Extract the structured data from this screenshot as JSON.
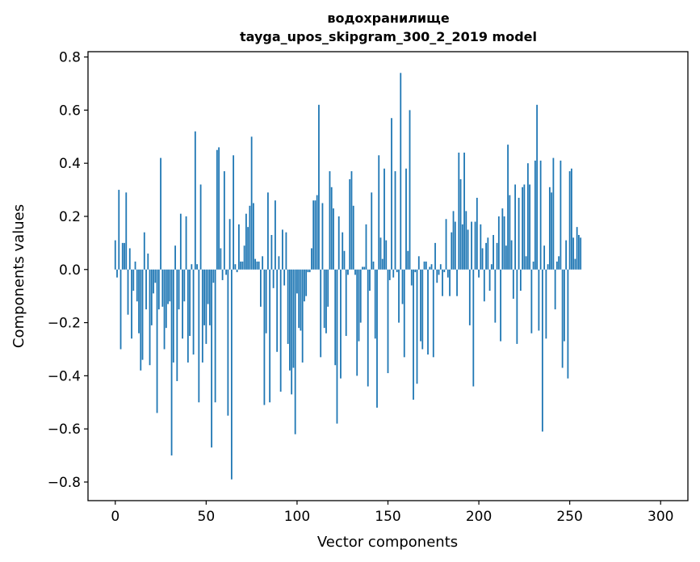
{
  "chart_data": {
    "type": "bar",
    "title": [
      "водохранилище",
      "tayga_upos_skipgram_300_2_2019 model"
    ],
    "xlabel": "Vector components",
    "ylabel": "Components values",
    "xlim": [
      -15,
      315
    ],
    "ylim": [
      -0.87,
      0.82
    ],
    "xticks": [
      0,
      50,
      100,
      150,
      200,
      250,
      300
    ],
    "xtick_labels": [
      "0",
      "50",
      "100",
      "150",
      "200",
      "250",
      "300"
    ],
    "yticks": [
      -0.8,
      -0.6,
      -0.4,
      -0.2,
      0.0,
      0.2,
      0.4,
      0.6,
      0.8
    ],
    "ytick_labels": [
      "−0.8",
      "−0.6",
      "−0.4",
      "−0.2",
      "0.0",
      "0.2",
      "0.4",
      "0.6",
      "0.8"
    ],
    "grid": false,
    "bar_color": "#1f77b4",
    "series": [
      {
        "name": "components",
        "values": [
          0.11,
          -0.03,
          0.3,
          -0.3,
          0.1,
          0.1,
          0.29,
          -0.17,
          0.08,
          -0.26,
          -0.08,
          0.03,
          -0.12,
          -0.24,
          -0.38,
          -0.34,
          0.14,
          -0.15,
          0.06,
          -0.36,
          -0.21,
          -0.09,
          -0.05,
          -0.54,
          -0.15,
          0.42,
          -0.14,
          -0.3,
          -0.22,
          -0.13,
          -0.12,
          -0.7,
          -0.35,
          0.09,
          -0.42,
          -0.15,
          0.21,
          -0.26,
          -0.12,
          0.2,
          -0.35,
          -0.25,
          0.02,
          -0.32,
          0.52,
          0.02,
          -0.5,
          0.32,
          -0.35,
          -0.21,
          -0.28,
          -0.13,
          -0.21,
          -0.67,
          -0.05,
          -0.5,
          0.45,
          0.46,
          0.08,
          -0.04,
          0.37,
          -0.02,
          -0.55,
          0.19,
          -0.79,
          0.43,
          0.02,
          -0.01,
          0.17,
          0.03,
          0.03,
          0.09,
          0.21,
          0.16,
          0.24,
          0.5,
          0.25,
          0.04,
          0.03,
          0.03,
          -0.14,
          0.05,
          -0.51,
          -0.24,
          0.29,
          -0.5,
          0.13,
          -0.07,
          0.26,
          -0.31,
          0.05,
          -0.46,
          0.15,
          -0.06,
          0.14,
          -0.28,
          -0.38,
          -0.47,
          -0.37,
          -0.62,
          -0.09,
          -0.22,
          -0.23,
          -0.35,
          -0.12,
          -0.1,
          -0.01,
          -0.01,
          0.08,
          0.26,
          0.26,
          0.28,
          0.62,
          -0.33,
          0.25,
          -0.22,
          -0.24,
          -0.14,
          0.37,
          0.31,
          0.23,
          -0.36,
          -0.58,
          0.2,
          -0.41,
          0.14,
          0.07,
          -0.25,
          -0.02,
          0.34,
          0.37,
          0.24,
          -0.02,
          -0.4,
          -0.27,
          -0.2,
          0.01,
          0.01,
          0.17,
          -0.44,
          -0.08,
          0.29,
          0.03,
          -0.26,
          -0.52,
          0.43,
          0.12,
          0.04,
          0.38,
          0.11,
          -0.39,
          -0.04,
          0.57,
          -0.03,
          0.37,
          -0.01,
          -0.2,
          0.74,
          -0.13,
          -0.33,
          0.38,
          0.07,
          0.6,
          -0.06,
          -0.49,
          -0.01,
          -0.43,
          0.05,
          -0.27,
          -0.3,
          0.03,
          0.03,
          -0.32,
          0.01,
          0.02,
          -0.33,
          0.1,
          -0.05,
          -0.02,
          0.02,
          -0.1,
          -0.01,
          0.19,
          -0.03,
          -0.1,
          0.14,
          0.22,
          0.18,
          -0.1,
          0.44,
          0.34,
          0.17,
          0.44,
          0.22,
          0.15,
          -0.21,
          0.18,
          -0.44,
          0.18,
          0.27,
          -0.03,
          0.17,
          0.08,
          -0.12,
          0.1,
          0.12,
          -0.08,
          0.02,
          0.13,
          -0.2,
          0.1,
          0.2,
          -0.27,
          0.23,
          0.2,
          0.09,
          0.47,
          0.28,
          0.11,
          -0.11,
          0.32,
          -0.28,
          0.27,
          -0.08,
          0.31,
          0.32,
          0.05,
          0.4,
          0.32,
          -0.24,
          0.03,
          0.41,
          0.62,
          -0.23,
          0.41,
          -0.61,
          0.09,
          -0.26,
          0.02,
          0.31,
          0.29,
          0.42,
          -0.15,
          0.03,
          0.05,
          0.41,
          -0.37,
          -0.27,
          0.11,
          -0.41,
          0.37,
          0.38,
          0.12,
          0.04,
          0.16,
          0.13,
          0.12
        ]
      }
    ]
  }
}
